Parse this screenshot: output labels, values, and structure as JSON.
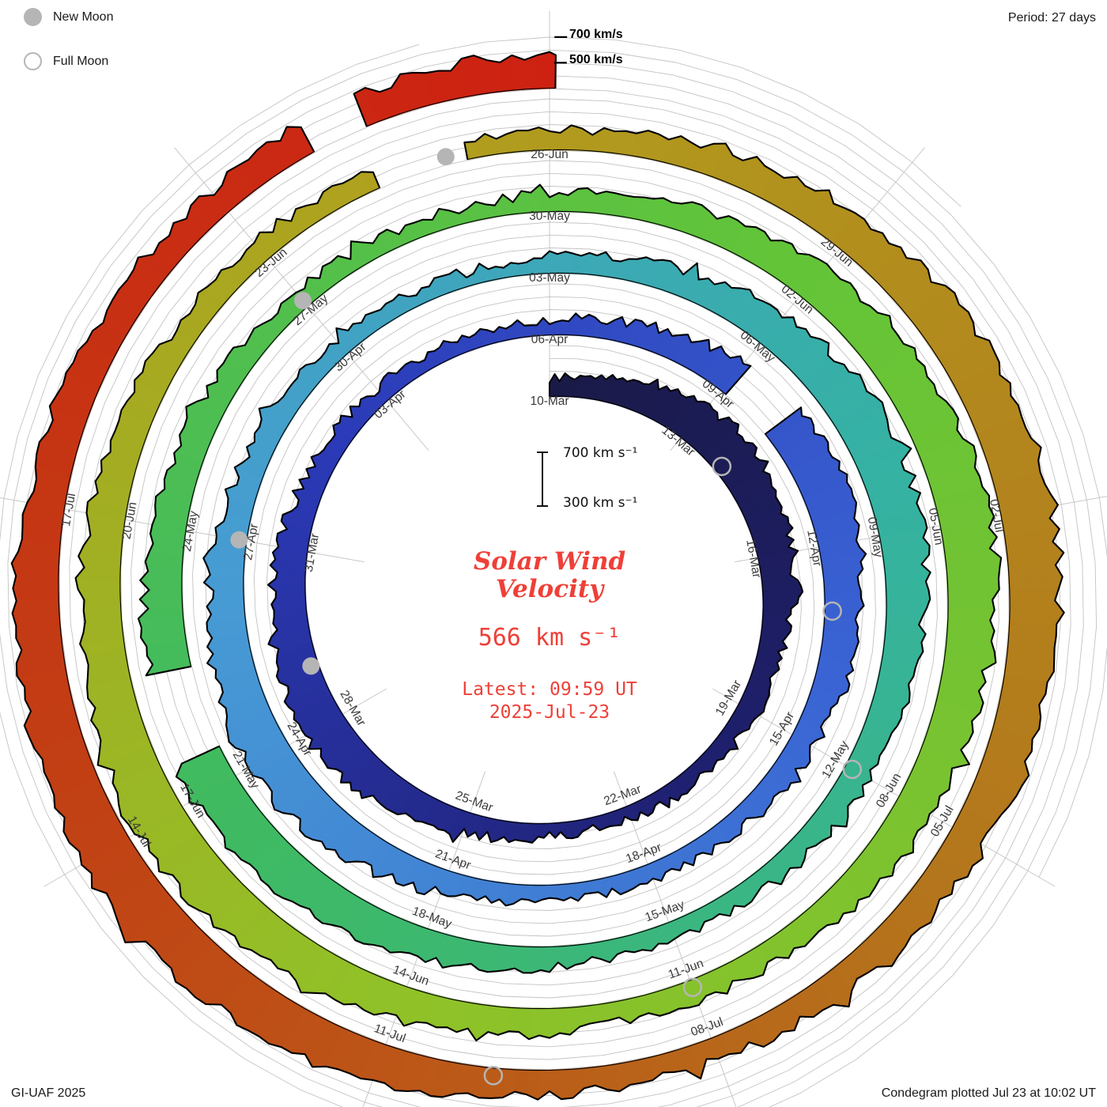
{
  "legend": {
    "new_moon_label": "New Moon",
    "full_moon_label": "Full Moon"
  },
  "period_label": "Period: 27 days",
  "top_scale": {
    "outer_label": "700 km/s",
    "inner_label": "500 km/s"
  },
  "center": {
    "scale_top_label": "700 km s⁻¹",
    "scale_bottom_label": "300 km s⁻¹",
    "title_line1": "Solar Wind",
    "title_line2": "Velocity",
    "current_value": "566 km s⁻¹",
    "latest_line1": "Latest: 09:59 UT",
    "latest_line2": "2025-Jul-23"
  },
  "footer": {
    "left": "GI-UAF 2025",
    "right": "Condegram plotted Jul 23 at 10:02 UT"
  },
  "chart_data": {
    "type": "area",
    "subtype": "condegram_polar_spiral",
    "title": "Solar Wind Velocity",
    "value_unit": "km/s",
    "period_days": 27,
    "start_date": "2025-03-10",
    "end_datetime": "2025-07-23T09:59",
    "latest_value_kms": 566,
    "value_baseline": 300,
    "value_scale_max": 700,
    "grid_velocities": [
      300,
      400,
      500,
      600,
      700
    ],
    "date_tick_interval_days": 3,
    "date_ticks": [
      "10-Mar",
      "13-Mar",
      "16-Mar",
      "19-Mar",
      "22-Mar",
      "25-Mar",
      "28-Mar",
      "31-Mar",
      "03-Apr",
      "06-Apr",
      "09-Apr",
      "12-Apr",
      "15-Apr",
      "18-Apr",
      "21-Apr",
      "24-Apr",
      "27-Apr",
      "30-Apr",
      "03-May",
      "06-May",
      "09-May",
      "12-May",
      "15-May",
      "18-May",
      "21-May",
      "24-May",
      "27-May",
      "30-May",
      "02-Jun",
      "05-Jun",
      "08-Jun",
      "11-Jun",
      "14-Jun",
      "17-Jun",
      "20-Jun",
      "23-Jun",
      "26-Jun",
      "29-Jun",
      "02-Jul",
      "05-Jul",
      "08-Jul",
      "11-Jul",
      "14-Jul",
      "17-Jul"
    ],
    "daily_velocity_start": "2025-03-10",
    "daily_velocity": [
      430,
      490,
      560,
      620,
      650,
      630,
      580,
      530,
      490,
      460,
      440,
      420,
      405,
      395,
      415,
      470,
      545,
      605,
      640,
      615,
      570,
      525,
      485,
      455,
      435,
      415,
      405,
      420,
      450,
      510,
      580,
      635,
      660,
      630,
      585,
      540,
      498,
      465,
      440,
      422,
      412,
      438,
      488,
      558,
      622,
      658,
      632,
      588,
      542,
      500,
      462,
      442,
      424,
      412,
      432,
      468,
      525,
      590,
      645,
      672,
      648,
      602,
      558,
      515,
      478,
      452,
      436,
      448,
      492,
      552,
      615,
      662,
      678,
      648,
      605,
      558,
      515,
      475,
      452,
      434,
      424,
      445,
      478,
      535,
      598,
      652,
      685,
      702,
      668,
      622,
      575,
      532,
      495,
      468,
      470,
      512,
      572,
      635,
      685,
      705,
      672,
      628,
      578,
      535,
      495,
      472,
      452,
      442,
      455,
      488,
      545,
      608,
      662,
      695,
      715,
      685,
      638,
      590,
      545,
      508,
      480,
      482,
      525,
      588,
      652,
      705,
      722,
      688,
      645,
      602,
      565,
      535,
      515,
      545,
      558,
      566
    ],
    "data_gaps_day_offsets": [
      [
        30.2,
        30.9
      ],
      [
        72.5,
        73.3
      ],
      [
        106.4,
        107.1
      ],
      [
        132.95,
        133.3
      ]
    ],
    "new_moons": {
      "dates": [
        "2025-03-29",
        "2025-04-27",
        "2025-05-27",
        "2025-06-25"
      ],
      "day_offsets": [
        19,
        48,
        78,
        107
      ]
    },
    "full_moons": {
      "dates": [
        "2025-03-14",
        "2025-04-13",
        "2025-05-12",
        "2025-06-11",
        "2025-07-10"
      ],
      "day_offsets": [
        4,
        34,
        63,
        93,
        122
      ]
    },
    "color_stops": [
      [
        0,
        "#1a1a48"
      ],
      [
        0.08,
        "#1f2070"
      ],
      [
        0.17,
        "#2b3ab8"
      ],
      [
        0.26,
        "#3a64d4"
      ],
      [
        0.35,
        "#479bd4"
      ],
      [
        0.44,
        "#35b2a2"
      ],
      [
        0.53,
        "#3fba62"
      ],
      [
        0.62,
        "#63c438"
      ],
      [
        0.71,
        "#90c228"
      ],
      [
        0.79,
        "#b0a01e"
      ],
      [
        0.87,
        "#b4761c"
      ],
      [
        0.94,
        "#c23e14"
      ],
      [
        1,
        "#ce2112"
      ]
    ],
    "layout": {
      "grid": true,
      "direction": "clockwise",
      "rotation_start_angle_deg": 0,
      "legend_position": "top-left"
    }
  }
}
